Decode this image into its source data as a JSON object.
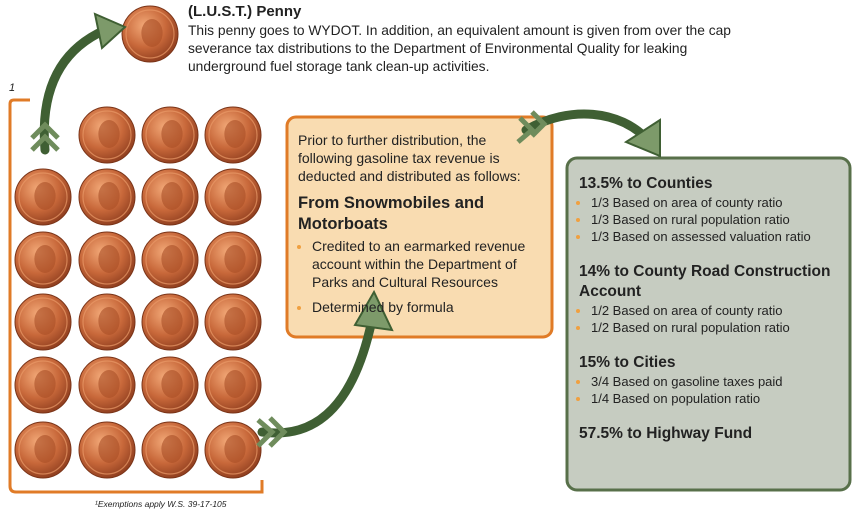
{
  "top_penny": {
    "title": "(L.U.S.T.) Penny",
    "description": "This penny goes to WYDOT. In addition, an equivalent amount is given from over the cap severance tax distributions to the Department of Environmental Quality for leaking underground fuel storage tank clean-up activities."
  },
  "footnote_marker": "1",
  "deduction_box": {
    "intro": "Prior to further distribution, the following gasoline tax revenue is deducted and distributed as follows:",
    "heading": "From Snowmobiles and Motorboats",
    "bullets": [
      "Credited to an earmarked revenue account within the Department of Parks and Cultural Resources",
      "Determined by formula"
    ]
  },
  "distribution_box": {
    "sections": [
      {
        "heading": "13.5% to Counties",
        "bullets": [
          "1/3 Based on area of county ratio",
          "1/3 Based on rural population ratio",
          "1/3 Based on assessed valuation ratio"
        ]
      },
      {
        "heading": "14% to County Road Construction Account",
        "bullets": [
          "1/2 Based on area of county ratio",
          "1/2 Based on rural population ratio"
        ]
      },
      {
        "heading": "15% to Cities",
        "bullets": [
          "3/4 Based on gasoline taxes paid",
          "1/4 Based on population ratio"
        ]
      },
      {
        "heading": "57.5% to Highway Fund"
      }
    ]
  },
  "footnote": "¹Exemptions apply W.S. 39-17-105"
}
